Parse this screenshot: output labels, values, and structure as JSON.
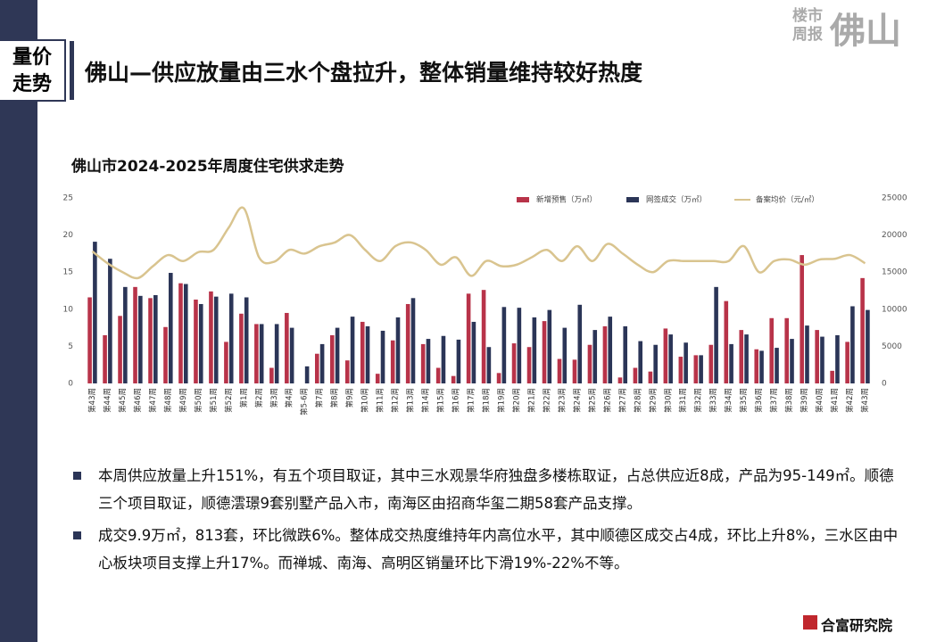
{
  "header": {
    "tag_line1": "量价",
    "tag_line2": "走势",
    "title": "佛山—供应放量由三水个盘拉升，整体销量维持较好热度",
    "logo_small1": "楼市",
    "logo_small2": "周报",
    "logo_big": "佛山"
  },
  "chart_data": {
    "type": "bar",
    "title": "佛山市2024-2025年周度住宅供求走势",
    "categories": [
      "第43周",
      "第44周",
      "第45周",
      "第46周",
      "第47周",
      "第48周",
      "第49周",
      "第50周",
      "第51周",
      "第52周",
      "第1周",
      "第2周",
      "第3周",
      "第4周",
      "第5-6周",
      "第7周",
      "第8周",
      "第9周",
      "第10周",
      "第11周",
      "第12周",
      "第13周",
      "第14周",
      "第15周",
      "第16周",
      "第17周",
      "第18周",
      "第19周",
      "第20周",
      "第21周",
      "第22周",
      "第23周",
      "第24周",
      "第25周",
      "第26周",
      "第27周",
      "第28周",
      "第29周",
      "第30周",
      "第31周",
      "第32周",
      "第33周",
      "第34周",
      "第35周",
      "第36周",
      "第37周",
      "第38周",
      "第39周",
      "第40周",
      "第41周",
      "第42周",
      "第43周"
    ],
    "series": [
      {
        "name": "新增预售（万㎡）",
        "color": "#b83349",
        "values": [
          11.6,
          6.5,
          9.1,
          13,
          11.5,
          7.6,
          13.5,
          11.3,
          12.4,
          5.6,
          9.4,
          8,
          2.1,
          9.5,
          0,
          4,
          6.5,
          3.1,
          8.3,
          1.3,
          5.8,
          10.7,
          5.3,
          2.1,
          1,
          12.1,
          12.6,
          1.4,
          5.4,
          4.9,
          8.4,
          3.3,
          3.2,
          5.2,
          7.7,
          0.8,
          2.1,
          1.6,
          7.4,
          3.6,
          3.8,
          5.2,
          11.1,
          7.2,
          4.6,
          8.8,
          8.8,
          17.3,
          7.2,
          1.7,
          5.6,
          14.2
        ]
      },
      {
        "name": "网签成交（万㎡）",
        "color": "#2b3557",
        "values": [
          19.1,
          16.8,
          13,
          11.8,
          11.9,
          14.9,
          13.4,
          10.7,
          11.7,
          12.1,
          11.6,
          8,
          8,
          7.5,
          2.3,
          5.3,
          7.5,
          9,
          7.7,
          7.1,
          8.9,
          11.5,
          6,
          6.4,
          5.9,
          8.3,
          4.9,
          10.3,
          10.2,
          8.9,
          9.9,
          7.5,
          10.6,
          7.2,
          9,
          7.7,
          5.7,
          5.2,
          6.6,
          5.5,
          3.8,
          13,
          5.3,
          6.6,
          4.4,
          4.8,
          6,
          7.8,
          6.3,
          6.5,
          10.4,
          9.9
        ]
      },
      {
        "name": "备案均价（元/㎡）",
        "color": "#d9c48f",
        "type": "line",
        "axis": "y2",
        "values": [
          17800,
          16200,
          15000,
          14200,
          15800,
          17300,
          16500,
          17700,
          18000,
          21000,
          23600,
          17000,
          16400,
          18000,
          17500,
          18500,
          19000,
          20000,
          18000,
          16500,
          18500,
          19000,
          18000,
          16000,
          17000,
          14500,
          16500,
          15800,
          16000,
          17000,
          18000,
          16500,
          18500,
          16500,
          18800,
          17500,
          16000,
          15000,
          16500,
          16500,
          16500,
          16500,
          16500,
          18500,
          15000,
          16500,
          16700,
          16000,
          16700,
          16800,
          17300,
          16200
        ]
      }
    ],
    "ylim": [
      0,
      25
    ],
    "yticks": [
      0,
      5,
      10,
      15,
      20,
      25
    ],
    "y2lim": [
      0,
      25000
    ],
    "y2ticks": [
      0,
      5000,
      10000,
      15000,
      20000,
      25000
    ],
    "grid": false,
    "legend": "top-right"
  },
  "bullets": [
    "本周供应放量上升151%，有五个项目取证，其中三水观景华府独盘多楼栋取证，占总供应近8成，产品为95-149㎡。顺德三个项目取证，顺德澐璟9套别墅产品入市，南海区由招商华玺二期58套产品支撑。",
    "成交9.9万㎡，813套，环比微跌6%。整体成交热度维持年内高位水平，其中顺德区成交占4成，环比上升8%，三水区由中心板块项目支撑上升17%。而禅城、南海、高明区销量环比下滑19%-22%不等。"
  ],
  "footer": "合富研究院"
}
